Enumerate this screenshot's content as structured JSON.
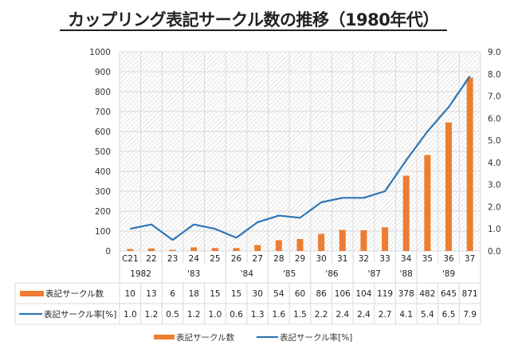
{
  "title": "カップリング表記サークル数の推移（1980年代）",
  "colors": {
    "bar": "#ED7D31",
    "line": "#2E75B6",
    "grid": "#D9D9D9"
  },
  "chart_data": {
    "type": "bar",
    "title": "カップリング表記サークル数の推移（1980年代）",
    "categories": [
      "C21",
      "22",
      "23",
      "24",
      "25",
      "26",
      "27",
      "28",
      "29",
      "30",
      "31",
      "32",
      "33",
      "34",
      "35",
      "36",
      "37"
    ],
    "year_groups": [
      {
        "label": "1982",
        "span": 2
      },
      {
        "label": "'83",
        "span": 3
      },
      {
        "label": "'84",
        "span": 2
      },
      {
        "label": "'85",
        "span": 2
      },
      {
        "label": "'86",
        "span": 2
      },
      {
        "label": "'87",
        "span": 2
      },
      {
        "label": "'88",
        "span": 1
      },
      {
        "label": "'89",
        "span": 3
      }
    ],
    "series": [
      {
        "name": "表記サークル数",
        "type": "bar",
        "axis": "left",
        "values": [
          10,
          13,
          6,
          18,
          15,
          15,
          30,
          54,
          60,
          86,
          106,
          104,
          119,
          378,
          482,
          645,
          871
        ],
        "labels": [
          "10",
          "13",
          "6",
          "18",
          "15",
          "15",
          "30",
          "54",
          "60",
          "86",
          "106",
          "104",
          "119",
          "378",
          "482",
          "645",
          "871"
        ]
      },
      {
        "name": "表記サークル率[%]",
        "type": "line",
        "axis": "right",
        "values": [
          1.0,
          1.2,
          0.5,
          1.2,
          1.0,
          0.6,
          1.3,
          1.6,
          1.5,
          2.2,
          2.4,
          2.4,
          2.7,
          4.1,
          5.4,
          6.5,
          7.9
        ],
        "labels": [
          "1.0",
          "1.2",
          "0.5",
          "1.2",
          "1.0",
          "0.6",
          "1.3",
          "1.6",
          "1.5",
          "2.2",
          "2.4",
          "2.4",
          "2.7",
          "4.1",
          "5.4",
          "6.5",
          "7.9"
        ]
      }
    ],
    "y_left": {
      "min": 0,
      "max": 1000,
      "step": 100,
      "ticks": [
        "0",
        "100",
        "200",
        "300",
        "400",
        "500",
        "600",
        "700",
        "800",
        "900",
        "1000"
      ]
    },
    "y_right": {
      "min": 0,
      "max": 9,
      "step": 1,
      "ticks": [
        "0.0",
        "1.0",
        "2.0",
        "3.0",
        "4.0",
        "5.0",
        "6.0",
        "7.0",
        "8.0",
        "9.0"
      ]
    },
    "grid": true,
    "data_table": true,
    "legend": {
      "position": "bottom",
      "entries": [
        "表記サークル数",
        "表記サークル率[%]"
      ]
    }
  }
}
